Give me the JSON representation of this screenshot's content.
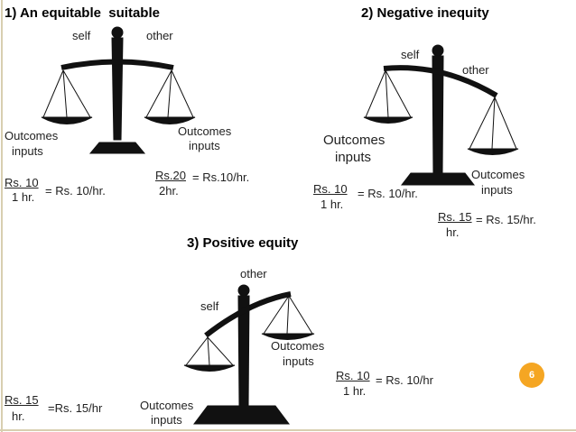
{
  "panels": [
    {
      "title": "1) An equitable  suitable",
      "self": "self",
      "other": "other",
      "self_outcomes": "Outcomes",
      "self_inputs": "inputs",
      "other_outcomes": "Outcomes",
      "other_inputs": "inputs",
      "self_ratio_top": "Rs. 10",
      "self_ratio_bottom": "1 hr.",
      "self_result": "= Rs. 10/hr.",
      "other_ratio_top": "Rs.20",
      "other_ratio_bottom": "2hr.",
      "other_result": "= Rs.10/hr."
    },
    {
      "title": "2) Negative inequity",
      "self": "self",
      "other": "other",
      "self_outcomes": "Outcomes",
      "self_inputs": "inputs",
      "other_outcomes": "Outcomes",
      "other_inputs": "inputs",
      "self_ratio_top": "Rs. 10",
      "self_ratio_bottom": "1 hr.",
      "self_result": "= Rs. 10/hr.",
      "other_ratio_top": "Rs. 15",
      "other_ratio_bottom": "hr.",
      "other_result": "= Rs. 15/hr."
    },
    {
      "title": "3) Positive equity",
      "self": "self",
      "other": "other",
      "self_outcomes": "Outcomes",
      "self_inputs": "inputs",
      "other_outcomes": "Outcomes",
      "other_inputs": "inputs",
      "self_ratio_top": "Rs. 15",
      "self_ratio_bottom": "hr.",
      "self_result": "=Rs. 15/hr",
      "other_ratio_top": "Rs. 10",
      "other_ratio_bottom": "1 hr.",
      "other_result": "= Rs. 10/hr"
    }
  ],
  "page_number": "6"
}
